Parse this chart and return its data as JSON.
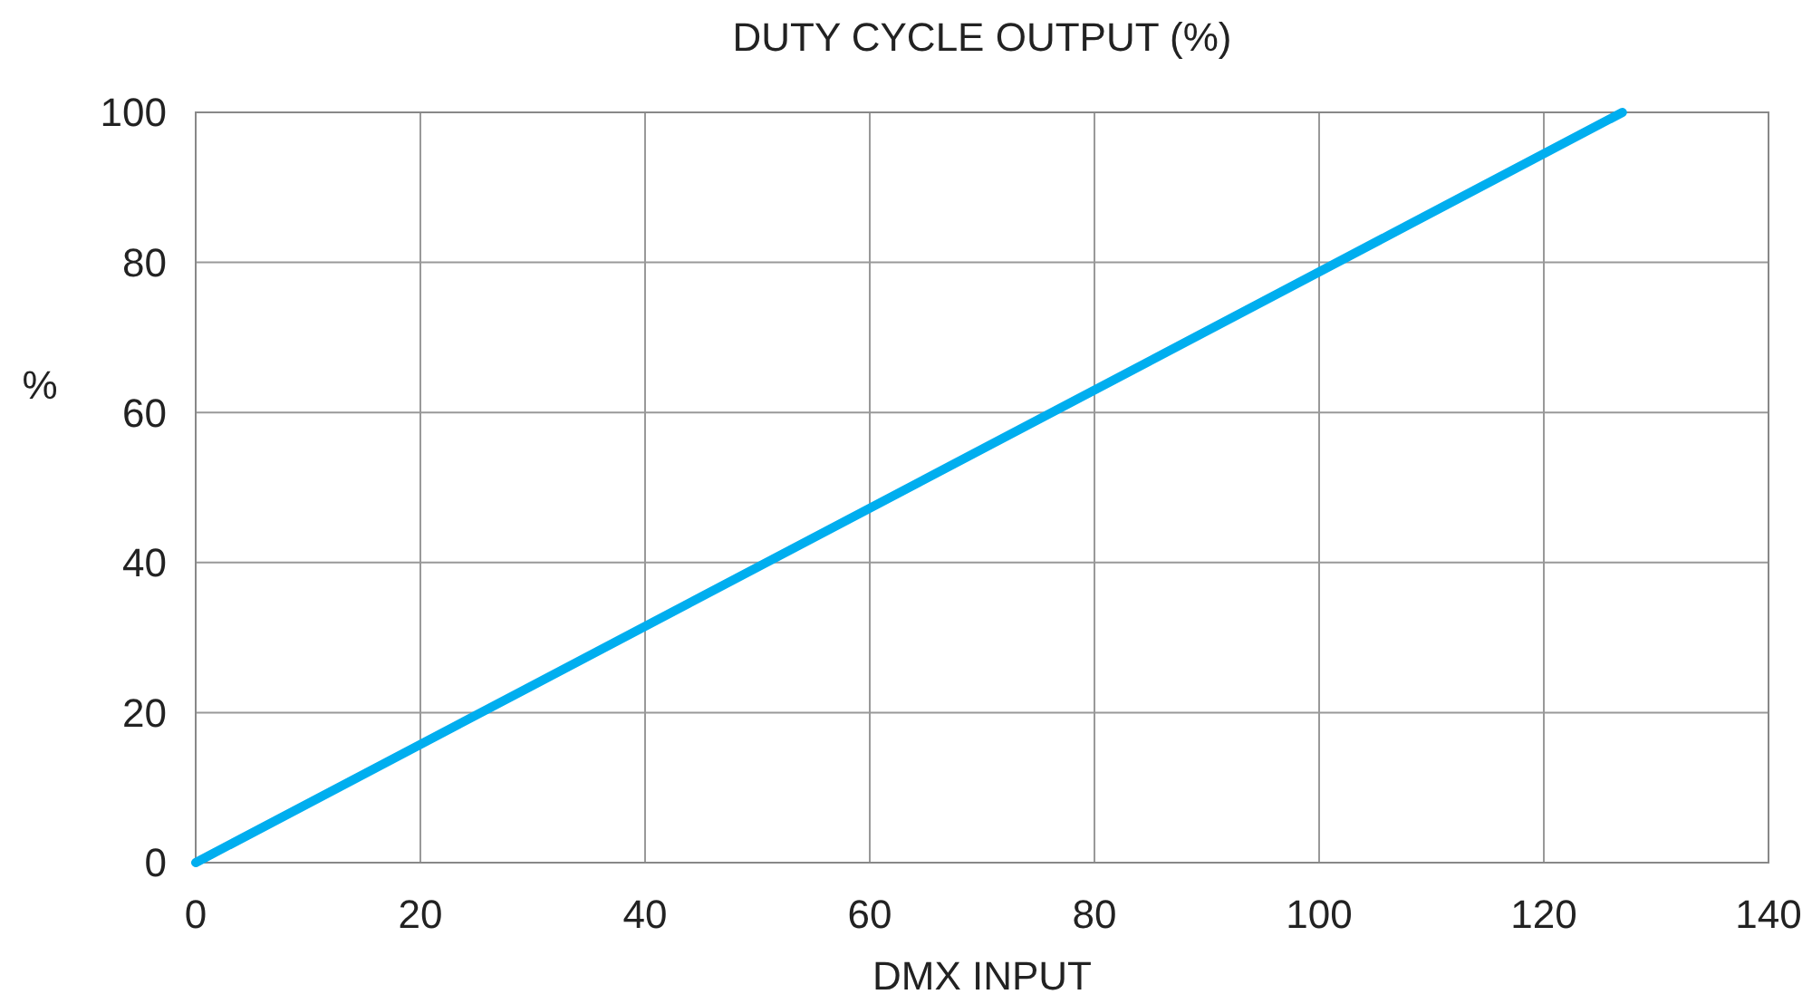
{
  "chart_data": {
    "type": "line",
    "title": "DUTY CYCLE OUTPUT (%)",
    "xlabel": "DMX INPUT",
    "ylabel": "%",
    "x": [
      0,
      127
    ],
    "series": [
      {
        "color": "#00aeef",
        "values": [
          0,
          100
        ]
      }
    ],
    "xlim": [
      0,
      140
    ],
    "xticks": [
      0,
      20,
      40,
      60,
      80,
      100,
      120,
      140
    ],
    "ylim": [
      0,
      100
    ],
    "yticks": [
      0,
      20,
      40,
      60,
      80,
      100
    ],
    "grid": true,
    "marker": "none",
    "line_style": "solid"
  }
}
